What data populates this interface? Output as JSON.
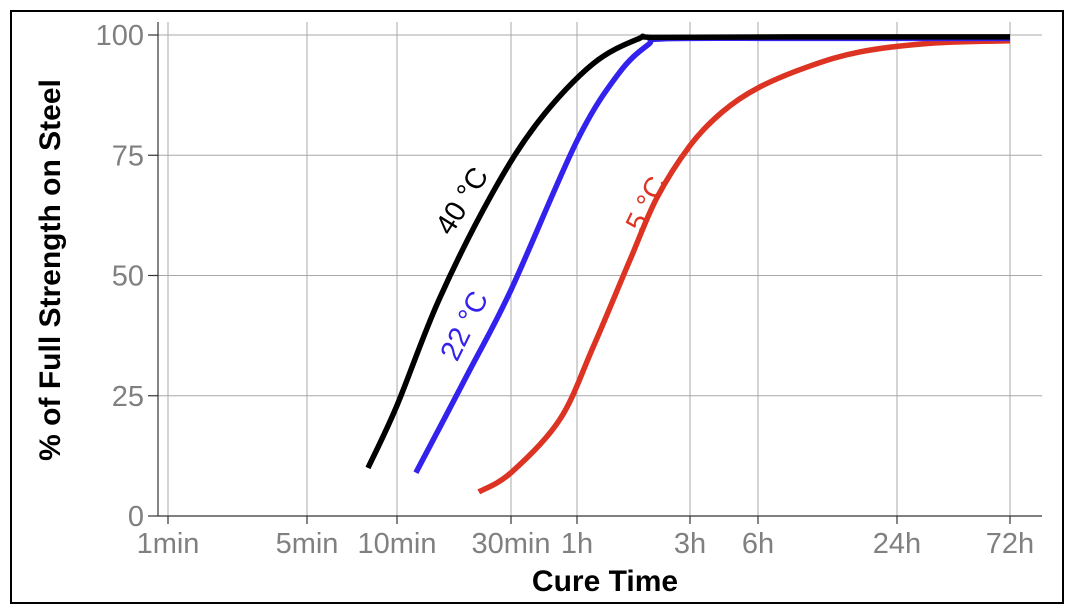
{
  "chart_data": {
    "type": "line",
    "xlabel": "Cure Time",
    "ylabel": "% of Full Strength on Steel",
    "x_scale": "log",
    "x_unit": "minutes",
    "xlim": [
      1,
      4320
    ],
    "ylim": [
      0,
      100
    ],
    "x_ticks": [
      {
        "value": 1,
        "label": "1min"
      },
      {
        "value": 5,
        "label": "5min"
      },
      {
        "value": 10,
        "label": "10min"
      },
      {
        "value": 30,
        "label": "30min"
      },
      {
        "value": 60,
        "label": "1h"
      },
      {
        "value": 180,
        "label": "3h"
      },
      {
        "value": 360,
        "label": "6h"
      },
      {
        "value": 1440,
        "label": "24h"
      },
      {
        "value": 4320,
        "label": "72h"
      }
    ],
    "y_ticks": [
      0,
      25,
      50,
      75,
      100
    ],
    "grid": true,
    "legend": "none",
    "series": [
      {
        "name": "40 °C",
        "color": "#000000",
        "x": [
          8,
          10,
          15,
          25,
          40,
          70,
          110,
          130,
          500,
          4320
        ],
        "y": [
          10,
          23,
          45,
          67,
          82,
          94,
          99.3,
          99.5,
          99.6,
          99.6
        ]
      },
      {
        "name": "22 °C",
        "color": "#3322ee",
        "x": [
          12,
          20,
          30,
          60,
          90,
          120,
          140,
          500,
          4320
        ],
        "y": [
          9,
          30,
          47,
          78,
          92,
          98,
          99.2,
          99.3,
          99.3
        ]
      },
      {
        "name": "5 °C",
        "color": "#dd3322",
        "x": [
          22,
          30,
          50,
          70,
          100,
          130,
          180,
          250,
          360,
          600,
          1000,
          2000,
          4320
        ],
        "y": [
          5,
          9,
          20,
          35,
          53,
          66,
          77,
          84,
          89,
          93.5,
          96.5,
          98.3,
          98.8
        ]
      }
    ]
  }
}
